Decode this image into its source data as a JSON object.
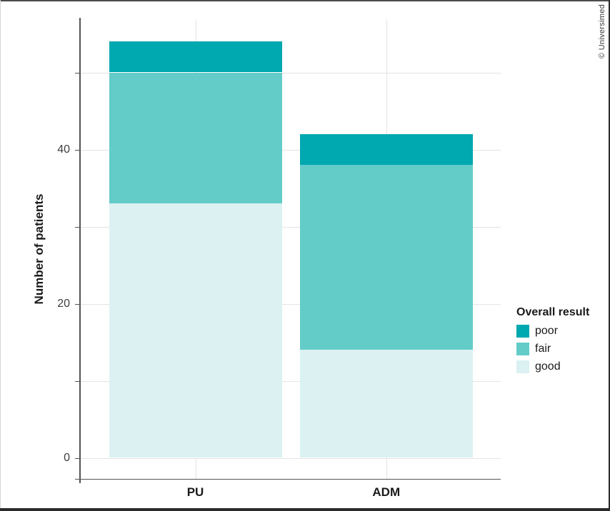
{
  "chart_data": {
    "type": "bar",
    "stacked": true,
    "categories": [
      "PU",
      "ADM"
    ],
    "series": [
      {
        "name": "poor",
        "color": "#00a8b0",
        "values": [
          4,
          4
        ]
      },
      {
        "name": "fair",
        "color": "#63ccc9",
        "values": [
          17,
          24
        ]
      },
      {
        "name": "good",
        "color": "#dcf1f1",
        "values": [
          33,
          14
        ]
      }
    ],
    "stack_order_bottom_to_top": [
      "good",
      "fair",
      "poor"
    ],
    "totals": [
      54,
      42
    ],
    "segment_boundaries": {
      "PU": [
        33,
        50,
        54
      ],
      "ADM": [
        14,
        38,
        42
      ]
    },
    "xlabel": "",
    "ylabel": "Number of patients",
    "ylim": [
      0,
      57
    ],
    "yticks": [
      {
        "value": 0,
        "label": "0"
      },
      {
        "value": 20,
        "label": "20"
      },
      {
        "value": 40,
        "label": "40"
      }
    ],
    "yticks_minor": [
      10,
      30,
      50
    ],
    "grid": "horizontal major+minor; vertical line at each category center",
    "legend_title": "Overall result",
    "legend_position": "right"
  },
  "legend": {
    "title": "Overall result",
    "items": [
      {
        "label": "poor"
      },
      {
        "label": "fair"
      },
      {
        "label": "good"
      }
    ]
  },
  "watermark": {
    "text": "© Universimed"
  },
  "colors": {
    "grid": "#e4e4e4",
    "axis": "#545454",
    "tick_label": "#3d3d3d",
    "text": "#1a1a1a",
    "poor": "#00a8b0",
    "fair": "#63ccc9",
    "good": "#dcf1f1"
  }
}
